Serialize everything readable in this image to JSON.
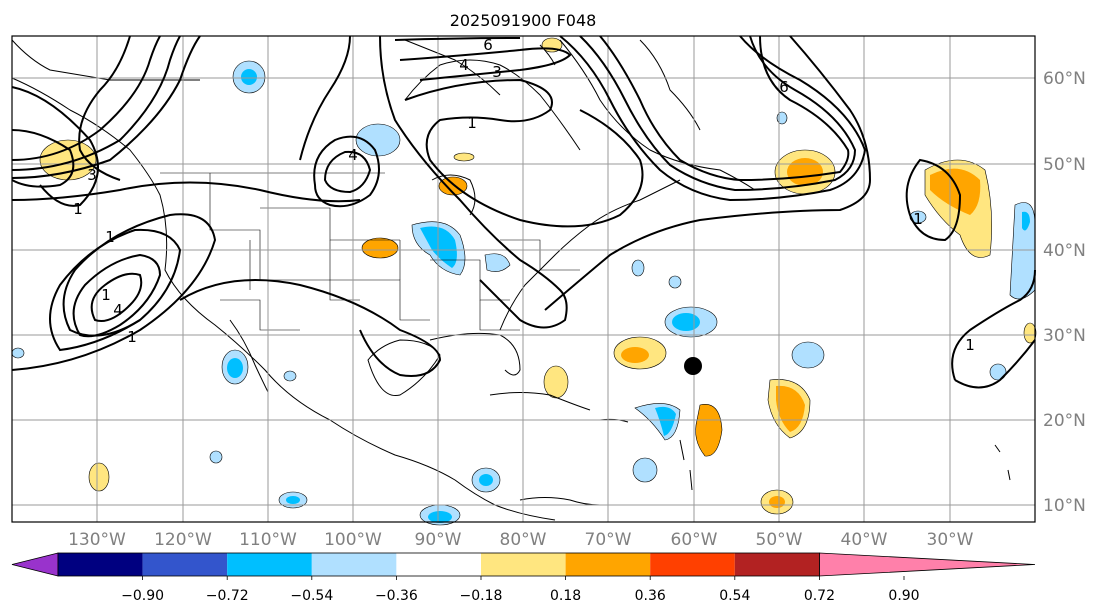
{
  "title": "2025091900 F048",
  "lon_labels": [
    "130°W",
    "120°W",
    "110°W",
    "100°W",
    "90°W",
    "80°W",
    "70°W",
    "60°W",
    "50°W",
    "40°W",
    "30°W"
  ],
  "lat_labels": [
    "60°N",
    "50°N",
    "40°N",
    "30°N",
    "20°N",
    "10°N"
  ],
  "contour_labels": [
    "6",
    "4",
    "3",
    "1",
    "4",
    "1",
    "6",
    "4",
    "3",
    "1",
    "1",
    "1",
    "1",
    "1"
  ],
  "colorbar": {
    "tick_labels": [
      "−0.90",
      "−0.72",
      "−0.54",
      "−0.36",
      "−0.18",
      "0.18",
      "0.36",
      "0.54",
      "0.72",
      "0.90"
    ],
    "colors": [
      "#9933cc",
      "#000080",
      "#3355cc",
      "#00bfff",
      "#b0e0ff",
      "#ffffff",
      "#ffe680",
      "#ffa500",
      "#ff4000",
      "#b22222",
      "#ff80aa"
    ]
  },
  "colors": {
    "coast": "#000000",
    "grid": "#9a9a9a",
    "tick_text": "#808080",
    "pos1": "#ffe680",
    "pos2": "#ffa500",
    "neg1": "#b0e0ff",
    "neg2": "#00bfff"
  }
}
